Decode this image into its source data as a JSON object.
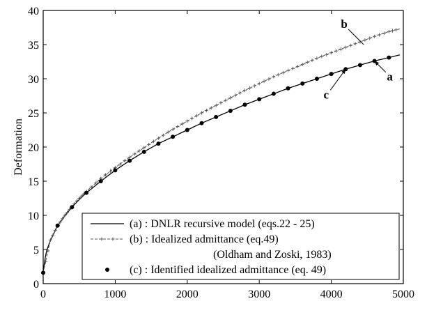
{
  "chart_data": {
    "type": "line",
    "title": "",
    "xlabel": "",
    "ylabel": "Deformation",
    "xlim": [
      0,
      5000
    ],
    "ylim": [
      0,
      40
    ],
    "xticks": [
      0,
      1000,
      2000,
      3000,
      4000,
      5000
    ],
    "yticks": [
      0,
      5,
      10,
      15,
      20,
      25,
      30,
      35,
      40
    ],
    "grid": false,
    "legend_position": "bottom-right",
    "series": [
      {
        "key": "a",
        "name": "(a) : DNLR recursive model (eqs.22 - 25)",
        "style": "solid",
        "color": "#000000",
        "x": [
          0,
          10,
          25,
          50,
          100,
          200,
          300,
          400,
          500,
          600,
          800,
          1000,
          1200,
          1400,
          1600,
          1800,
          2000,
          2200,
          2400,
          2600,
          2800,
          3000,
          3200,
          3400,
          3600,
          3800,
          4000,
          4200,
          4400,
          4600,
          4800,
          4950
        ],
        "y": [
          1.6,
          2.5,
          3.6,
          4.9,
          6.3,
          8.5,
          9.9,
          11.2,
          12.3,
          13.3,
          15.0,
          16.6,
          18.0,
          19.3,
          20.5,
          21.5,
          22.5,
          23.5,
          24.4,
          25.3,
          26.2,
          27.0,
          27.8,
          28.6,
          29.3,
          30.0,
          30.7,
          31.4,
          32.0,
          32.6,
          33.1,
          33.5
        ]
      },
      {
        "key": "b",
        "name": "(b) : Idealized admittance   (eq.49)",
        "name_line2": "(Oldham and Zoski, 1983)",
        "style": "dashed-plus",
        "color": "#555555",
        "x": [
          0,
          100,
          200,
          300,
          400,
          500,
          600,
          800,
          1000,
          1200,
          1400,
          1600,
          1800,
          2000,
          2200,
          2400,
          2600,
          2800,
          3000,
          3200,
          3400,
          3600,
          3800,
          4000,
          4200,
          4400,
          4600,
          4800,
          4950
        ],
        "y": [
          1.6,
          6.4,
          8.5,
          10.0,
          11.3,
          12.5,
          13.5,
          15.4,
          17.0,
          18.5,
          19.9,
          21.3,
          22.6,
          23.8,
          25.0,
          26.1,
          27.2,
          28.3,
          29.3,
          30.3,
          31.2,
          32.1,
          33.0,
          33.8,
          34.6,
          35.4,
          36.2,
          36.9,
          37.3
        ]
      },
      {
        "key": "c",
        "name": "(c) : Identified idealized admittance (eq. 49)",
        "style": "dots",
        "color": "#000000",
        "x": [
          0,
          200,
          400,
          600,
          800,
          1000,
          1200,
          1400,
          1600,
          1800,
          2000,
          2200,
          2400,
          2600,
          2800,
          3000,
          3200,
          3400,
          3600,
          3800,
          4000,
          4200,
          4400,
          4600,
          4800
        ],
        "y": [
          1.6,
          8.5,
          11.2,
          13.3,
          15.0,
          16.6,
          18.0,
          19.3,
          20.5,
          21.5,
          22.5,
          23.5,
          24.4,
          25.3,
          26.2,
          27.0,
          27.8,
          28.6,
          29.3,
          30.0,
          30.7,
          31.4,
          32.0,
          32.6,
          33.1
        ]
      }
    ],
    "annotations": [
      {
        "text": "b",
        "points_to": "b",
        "x": 4450,
        "y": 35.0
      },
      {
        "text": "a",
        "points_to": "a",
        "x": 4600,
        "y": 32.6
      },
      {
        "text": "c",
        "points_to": "c",
        "x": 4200,
        "y": 31.4
      }
    ]
  }
}
